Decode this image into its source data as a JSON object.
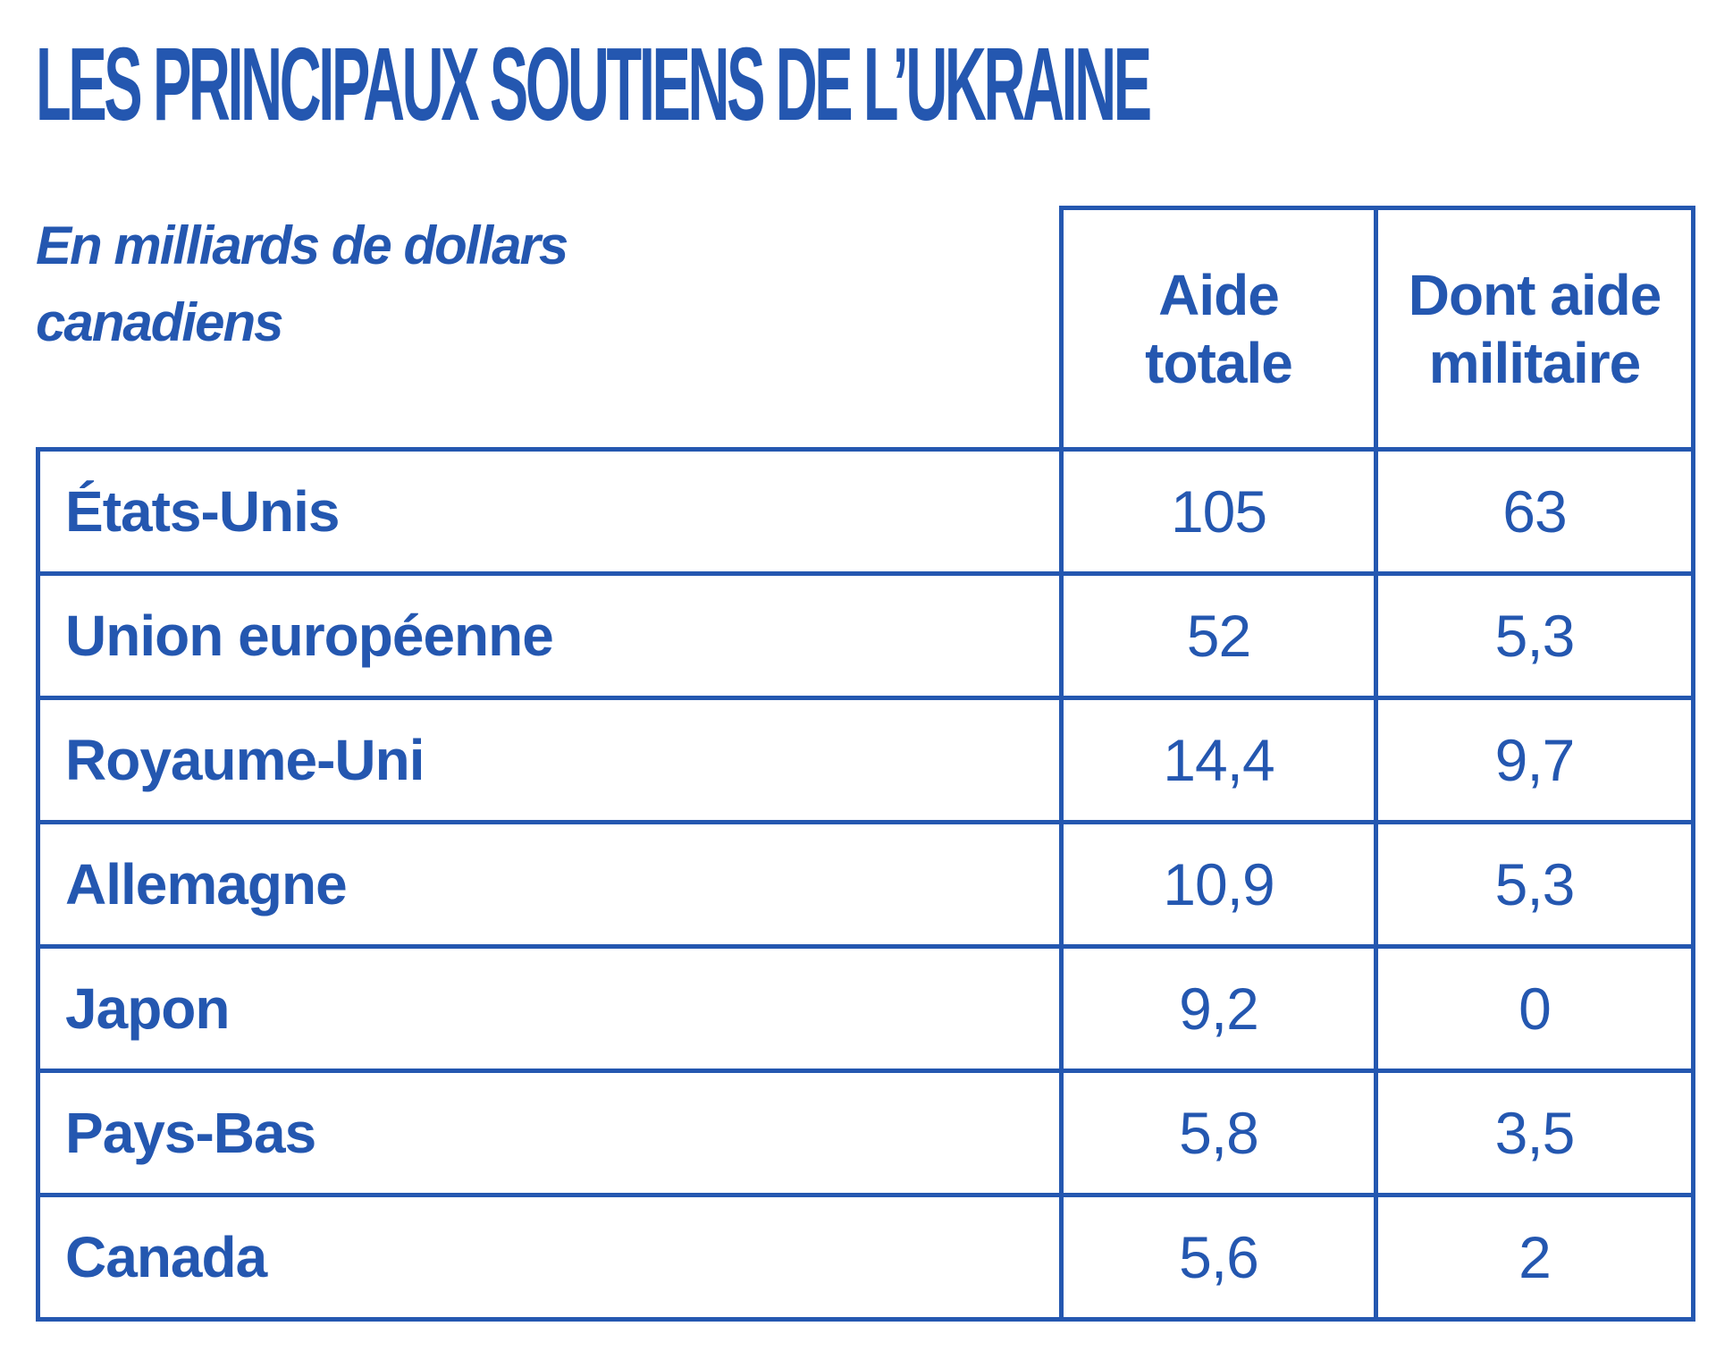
{
  "title": "LES PRINCIPAUX SOUTIENS DE L’UKRAINE",
  "subtitle": "En milliards de dollars canadiens",
  "colors": {
    "primary": "#2457b0",
    "background": "#ffffff"
  },
  "chart_data": {
    "type": "table",
    "title": "LES PRINCIPAUX SOUTIENS DE L’UKRAINE",
    "unit_note": "En milliards de dollars canadiens",
    "columns": [
      "Aide totale",
      "Dont aide militaire"
    ],
    "rows": [
      {
        "name": "États-Unis",
        "values": [
          "105",
          "63"
        ]
      },
      {
        "name": "Union européenne",
        "values": [
          "52",
          "5,3"
        ]
      },
      {
        "name": "Royaume-Uni",
        "values": [
          "14,4",
          "9,7"
        ]
      },
      {
        "name": "Allemagne",
        "values": [
          "10,9",
          "5,3"
        ]
      },
      {
        "name": "Japon",
        "values": [
          "9,2",
          "0"
        ]
      },
      {
        "name": "Pays-Bas",
        "values": [
          "5,8",
          "3,5"
        ]
      },
      {
        "name": "Canada",
        "values": [
          "5,6",
          "2"
        ]
      }
    ]
  }
}
